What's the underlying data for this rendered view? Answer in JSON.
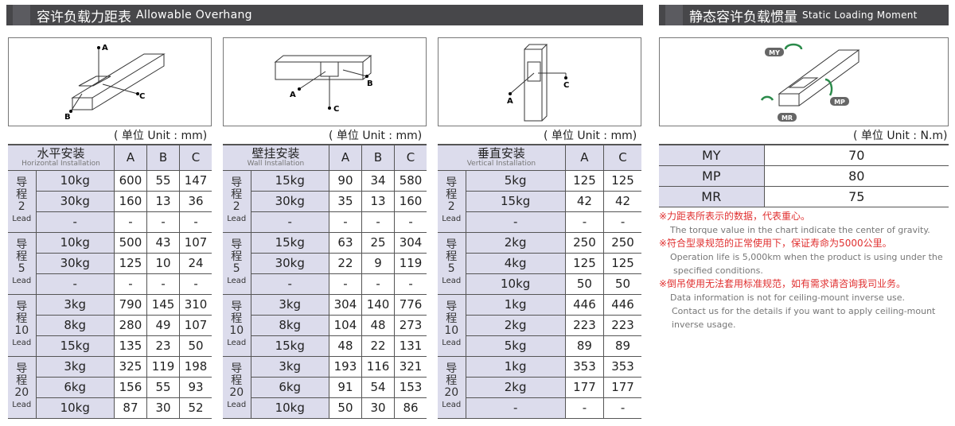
{
  "header_left": {
    "cn": "容许负载力距表",
    "en": "Allowable Overhang"
  },
  "header_right": {
    "cn": "静态容许负载惯量",
    "en": "Static Loading Moment"
  },
  "unit_mm": "( 单位 Unit : mm)",
  "unit_nm": "( 单位 Unit : N.m)",
  "diagram_labels": {
    "A": "A",
    "B": "B",
    "C": "C",
    "MY": "MY",
    "MP": "MP",
    "MR": "MR"
  },
  "colors": {
    "header_bg": "#47474a",
    "cell_header": "#dcdcec",
    "note_red": "#e03030"
  },
  "tables": [
    {
      "title_cn": "水平安装",
      "title_en": "Horizontal Installation",
      "cols": [
        "A",
        "B",
        "C"
      ],
      "groups": [
        {
          "lead": [
            "导",
            "程",
            "2",
            "Lead"
          ],
          "rows": [
            [
              "10kg",
              "600",
              "55",
              "147"
            ],
            [
              "30kg",
              "160",
              "13",
              "36"
            ],
            [
              "-",
              "-",
              "-",
              "-"
            ]
          ]
        },
        {
          "lead": [
            "导",
            "程",
            "5",
            "Lead"
          ],
          "rows": [
            [
              "10kg",
              "500",
              "43",
              "107"
            ],
            [
              "30kg",
              "125",
              "10",
              "24"
            ],
            [
              "-",
              "-",
              "-",
              "-"
            ]
          ]
        },
        {
          "lead": [
            "导",
            "程",
            "10",
            "Lead"
          ],
          "rows": [
            [
              "3kg",
              "790",
              "145",
              "310"
            ],
            [
              "8kg",
              "280",
              "49",
              "107"
            ],
            [
              "15kg",
              "135",
              "23",
              "50"
            ]
          ]
        },
        {
          "lead": [
            "导",
            "程",
            "20",
            "Lead"
          ],
          "rows": [
            [
              "3kg",
              "325",
              "119",
              "198"
            ],
            [
              "6kg",
              "156",
              "55",
              "93"
            ],
            [
              "10kg",
              "87",
              "30",
              "52"
            ]
          ]
        }
      ]
    },
    {
      "title_cn": "壁挂安装",
      "title_en": "Wall Installation",
      "cols": [
        "A",
        "B",
        "C"
      ],
      "groups": [
        {
          "lead": [
            "导",
            "程",
            "2",
            "Lead"
          ],
          "rows": [
            [
              "15kg",
              "90",
              "34",
              "580"
            ],
            [
              "30kg",
              "35",
              "13",
              "160"
            ],
            [
              "-",
              "-",
              "-",
              "-"
            ]
          ]
        },
        {
          "lead": [
            "导",
            "程",
            "5",
            "Lead"
          ],
          "rows": [
            [
              "15kg",
              "63",
              "25",
              "304"
            ],
            [
              "30kg",
              "22",
              "9",
              "119"
            ],
            [
              "-",
              "-",
              "-",
              "-"
            ]
          ]
        },
        {
          "lead": [
            "导",
            "程",
            "10",
            "Lead"
          ],
          "rows": [
            [
              "3kg",
              "304",
              "140",
              "776"
            ],
            [
              "8kg",
              "104",
              "48",
              "273"
            ],
            [
              "15kg",
              "48",
              "22",
              "131"
            ]
          ]
        },
        {
          "lead": [
            "导",
            "程",
            "20",
            "Lead"
          ],
          "rows": [
            [
              "3kg",
              "193",
              "116",
              "321"
            ],
            [
              "6kg",
              "91",
              "54",
              "153"
            ],
            [
              "10kg",
              "50",
              "30",
              "86"
            ]
          ]
        }
      ]
    },
    {
      "title_cn": "垂直安装",
      "title_en": "Vertical Installation",
      "cols": [
        "A",
        "C"
      ],
      "groups": [
        {
          "lead": [
            "导",
            "程",
            "2",
            "Lead"
          ],
          "rows": [
            [
              "5kg",
              "125",
              "125"
            ],
            [
              "15kg",
              "42",
              "42"
            ],
            [
              "-",
              "-",
              "-"
            ]
          ]
        },
        {
          "lead": [
            "导",
            "程",
            "5",
            "Lead"
          ],
          "rows": [
            [
              "2kg",
              "250",
              "250"
            ],
            [
              "4kg",
              "125",
              "125"
            ],
            [
              "10kg",
              "50",
              "50"
            ]
          ]
        },
        {
          "lead": [
            "导",
            "程",
            "10",
            "Lead"
          ],
          "rows": [
            [
              "1kg",
              "446",
              "446"
            ],
            [
              "2kg",
              "223",
              "223"
            ],
            [
              "5kg",
              "89",
              "89"
            ]
          ]
        },
        {
          "lead": [
            "导",
            "程",
            "20",
            "Lead"
          ],
          "rows": [
            [
              "1kg",
              "353",
              "353"
            ],
            [
              "2kg",
              "177",
              "177"
            ],
            [
              "-",
              "-",
              "-"
            ]
          ]
        }
      ]
    }
  ],
  "moments": [
    {
      "name": "MY",
      "value": "70"
    },
    {
      "name": "MP",
      "value": "80"
    },
    {
      "name": "MR",
      "value": "75"
    }
  ],
  "notes": [
    {
      "cn": "※力距表所表示的数据，代表重心。",
      "en": [
        "The torque value in the chart indicate the center of gravity."
      ]
    },
    {
      "cn": "※符合型录规范的正常使用下，保证寿命为5000公里。",
      "en": [
        "Operation life is 5,000km when the product is using under the",
        "specified conditions."
      ]
    },
    {
      "cn": "※倒吊使用无法套用标准规范，如有需求请咨询我司业务。",
      "en": [
        "Data information is not for ceiling-mount inverse use.",
        "Contact us for the details if you want to apply ceiling-mount",
        "inverse usage."
      ]
    }
  ]
}
